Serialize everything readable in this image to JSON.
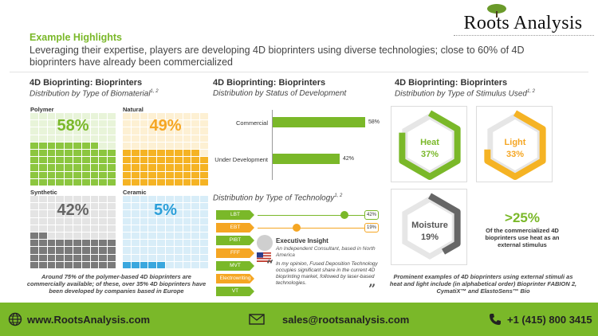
{
  "brand": {
    "name": "Roots Analysis"
  },
  "header": {
    "eyebrow": "Example Highlights",
    "headline": "Leveraging their expertise, players are developing 4D bioprinters using diverse technologies; close to 60% of 4D bioprinters have already been commercialized"
  },
  "panel1": {
    "title": "4D Bioprinting:  Bioprinters",
    "subtitle": "Distribution by Type of Biomaterial",
    "sup": "1, 2",
    "items": [
      {
        "label": "Polymer",
        "pct_text": "58%",
        "value": 58,
        "color": "#8cc63f",
        "pct_color": "#7ab829"
      },
      {
        "label": "Natural",
        "pct_text": "49%",
        "value": 49,
        "color": "#f5b324",
        "pct_color": "#f5a623"
      },
      {
        "label": "Synthetic",
        "pct_text": "42%",
        "value": 42,
        "color": "#7a7a7a",
        "pct_color": "#666666"
      },
      {
        "label": "Ceramic",
        "pct_text": "5%",
        "value": 5,
        "color": "#3aa7de",
        "pct_color": "#2b9fd9"
      }
    ],
    "note": "Around 75% of the polymer-based 4D bioprinters are commercially available; of these,  over 35% 4D bioprinters have been developed by companies based in Europe"
  },
  "panel2": {
    "title": "4D Bioprinting:  Bioprinters",
    "subtitle": "Distribution by Status of Development",
    "bars": [
      {
        "label": "Commercial",
        "value": 58,
        "value_text": "58%"
      },
      {
        "label": "Under Development",
        "value": 42,
        "value_text": "42%"
      }
    ],
    "tech_title": "Distribution by Type of Technology",
    "tech_sup": "1, 2",
    "tech": [
      {
        "label": "LBT",
        "pct_text": "42%",
        "value": 42,
        "color": "green"
      },
      {
        "label": "EBT",
        "pct_text": "19%",
        "value": 19,
        "color": "orange"
      },
      {
        "label": "PIBT",
        "color": "green"
      },
      {
        "label": "FFF",
        "color": "orange"
      },
      {
        "label": "MVT",
        "color": "green"
      },
      {
        "label": "Electrowriting",
        "color": "orange"
      },
      {
        "label": "VT",
        "color": "green"
      }
    ],
    "insight": {
      "title": "Executive Insight",
      "role": "An Independent Consultant, based in North America",
      "quote": "In my opinion, Fused Deposition Technology occupies significant share in the current 4D bioprinting market, followed by laser-based technologies.",
      "open_quote": "“",
      "close_quote": "”"
    }
  },
  "panel3": {
    "title": "4D Bioprinting:  Bioprinters",
    "subtitle": "Distribution by Type of Stimulus Used",
    "sup": "1, 2",
    "stimuli": [
      {
        "label": "Heat",
        "pct_text": "37%",
        "value": 37,
        "color": "#7ab829"
      },
      {
        "label": "Light",
        "pct_text": "33%",
        "value": 33,
        "color": "#f5b324"
      },
      {
        "label": "Moisture",
        "pct_text": "19%",
        "value": 19,
        "color": "#666666"
      }
    ],
    "big_stat": ">25%",
    "stat_text": "Of the commercialized 4D bioprinters use heat as an external stimulus",
    "note": "Prominent examples of 4D bioprinters using external stimuli as heat and light include (in alphabetical order) Bioprinter FABION 2, CymatiX™ and ElastoSens™ Bio"
  },
  "footer": {
    "website": "www.RootsAnalysis.com",
    "email": "sales@rootsanalysis.com",
    "phone": "+1 (415) 800 3415"
  }
}
